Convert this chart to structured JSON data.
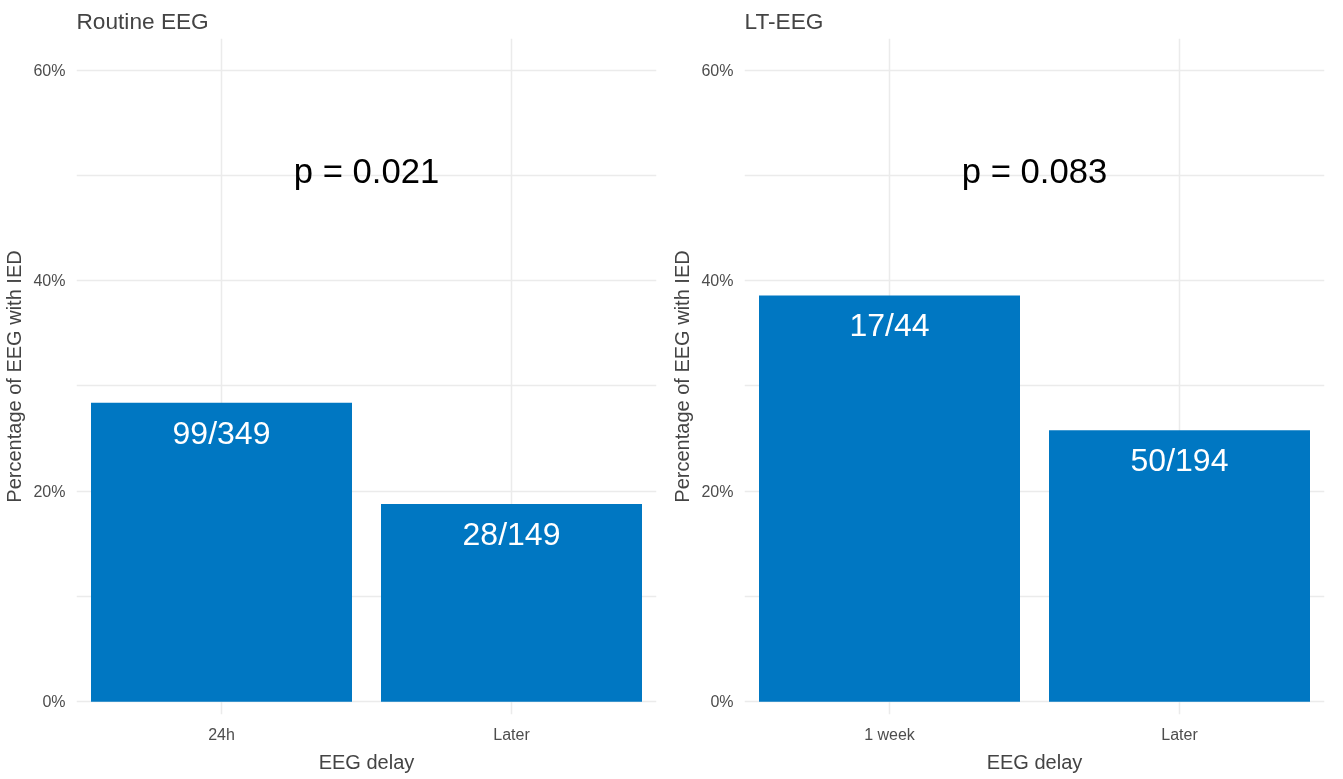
{
  "chart_data": [
    {
      "type": "bar",
      "title": "Routine EEG",
      "xlabel": "EEG delay",
      "ylabel": "Percentage of EEG with IED",
      "categories": [
        "24h",
        "Later"
      ],
      "values": [
        28.4,
        18.8
      ],
      "color": "#0077c2",
      "value_labels": [
        "99/349",
        "28/149"
      ],
      "annotations": [
        "p = 0.021"
      ],
      "ylim": [
        -1.2,
        63
      ],
      "yticks": [
        {
          "value": 0,
          "label": "0%"
        },
        {
          "value": 10,
          "label": null
        },
        {
          "value": 20,
          "label": "20%"
        },
        {
          "value": 30,
          "label": null
        },
        {
          "value": 40,
          "label": "40%"
        },
        {
          "value": 50,
          "label": null
        },
        {
          "value": 60,
          "label": "60%"
        }
      ],
      "grid": true
    },
    {
      "type": "bar",
      "title": "LT-EEG",
      "xlabel": "EEG delay",
      "ylabel": "Percentage of EEG with IED",
      "categories": [
        "1 week",
        "Later"
      ],
      "values": [
        38.6,
        25.8
      ],
      "color": "#0077c2",
      "value_labels": [
        "17/44",
        "50/194"
      ],
      "annotations": [
        "p = 0.083"
      ],
      "ylim": [
        -1.2,
        63
      ],
      "yticks": [
        {
          "value": 0,
          "label": "0%"
        },
        {
          "value": 10,
          "label": null
        },
        {
          "value": 20,
          "label": "20%"
        },
        {
          "value": 30,
          "label": null
        },
        {
          "value": 40,
          "label": "40%"
        },
        {
          "value": 50,
          "label": null
        },
        {
          "value": 60,
          "label": "60%"
        }
      ],
      "grid": true
    }
  ]
}
